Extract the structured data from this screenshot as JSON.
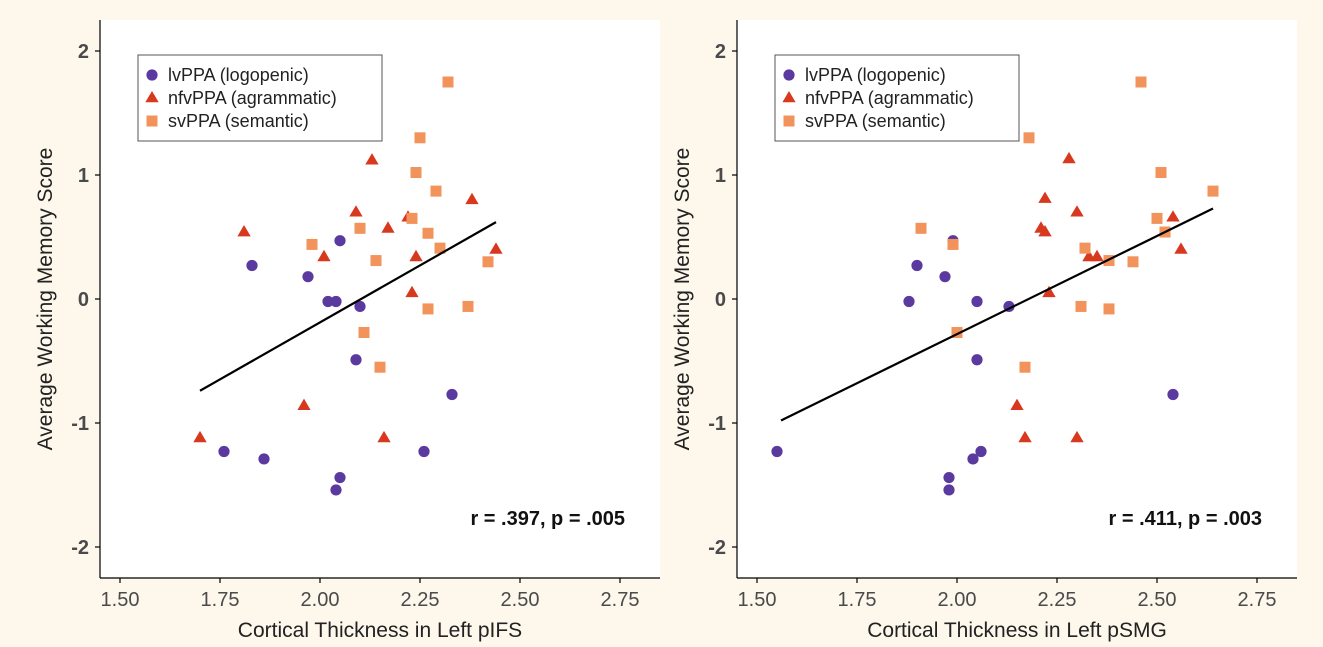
{
  "colors": {
    "background": "#fdf7ec",
    "plot_background": "#ffffff",
    "lvPPA": "#5b3aa0",
    "nfvPPA": "#d8381e",
    "svPPA": "#f2935b",
    "fit_line": "#000000"
  },
  "chart_data": [
    {
      "type": "scatter",
      "xlabel": "Cortical Thickness in Left pIFS",
      "ylabel": "Average Working Memory Score",
      "xlim": [
        1.45,
        2.85
      ],
      "ylim": [
        -2.25,
        2.25
      ],
      "x_ticks": [
        "1.50",
        "1.75",
        "2.00",
        "2.25",
        "2.50",
        "2.75"
      ],
      "y_ticks": [
        "-2",
        "-1",
        "0",
        "1",
        "2"
      ],
      "grid": false,
      "legend_position": "top-left",
      "annotation": "r = .397, p = .005",
      "fit_line": {
        "x": [
          1.7,
          2.44
        ],
        "y": [
          -0.74,
          0.62
        ]
      },
      "series": [
        {
          "name": "lvPPA (logopenic)",
          "marker": "circle",
          "points": [
            [
              1.83,
              0.27
            ],
            [
              1.97,
              0.18
            ],
            [
              2.05,
              0.47
            ],
            [
              2.02,
              -0.02
            ],
            [
              2.04,
              -0.02
            ],
            [
              2.1,
              -0.06
            ],
            [
              2.09,
              -0.49
            ],
            [
              2.33,
              -0.77
            ],
            [
              1.76,
              -1.23
            ],
            [
              1.86,
              -1.29
            ],
            [
              2.26,
              -1.23
            ],
            [
              2.05,
              -1.44
            ],
            [
              2.04,
              -1.54
            ]
          ]
        },
        {
          "name": "nfvPPA (agrammatic)",
          "marker": "triangle",
          "points": [
            [
              1.7,
              -1.12
            ],
            [
              1.81,
              0.54
            ],
            [
              1.96,
              -0.86
            ],
            [
              2.01,
              0.34
            ],
            [
              2.09,
              0.7
            ],
            [
              2.13,
              1.12
            ],
            [
              2.17,
              0.57
            ],
            [
              2.16,
              -1.12
            ],
            [
              2.22,
              0.66
            ],
            [
              2.24,
              0.34
            ],
            [
              2.23,
              0.05
            ],
            [
              2.38,
              0.8
            ],
            [
              2.44,
              0.4
            ]
          ]
        },
        {
          "name": "svPPA (semantic)",
          "marker": "square",
          "points": [
            [
              2.32,
              1.75
            ],
            [
              2.25,
              1.3
            ],
            [
              2.24,
              1.02
            ],
            [
              2.29,
              0.87
            ],
            [
              2.23,
              0.65
            ],
            [
              2.1,
              0.57
            ],
            [
              1.98,
              0.44
            ],
            [
              2.27,
              0.53
            ],
            [
              2.3,
              0.41
            ],
            [
              2.14,
              0.31
            ],
            [
              2.42,
              0.3
            ],
            [
              2.11,
              -0.27
            ],
            [
              2.15,
              -0.55
            ],
            [
              2.27,
              -0.08
            ],
            [
              2.37,
              -0.06
            ]
          ]
        }
      ]
    },
    {
      "type": "scatter",
      "xlabel": "Cortical Thickness in Left pSMG",
      "ylabel": "Average Working Memory Score",
      "xlim": [
        1.45,
        2.85
      ],
      "ylim": [
        -2.25,
        2.25
      ],
      "x_ticks": [
        "1.50",
        "1.75",
        "2.00",
        "2.25",
        "2.50",
        "2.75"
      ],
      "y_ticks": [
        "-2",
        "-1",
        "0",
        "1",
        "2"
      ],
      "grid": false,
      "legend_position": "top-left",
      "annotation": "r = .411, p = .003",
      "fit_line": {
        "x": [
          1.56,
          2.64
        ],
        "y": [
          -0.98,
          0.73
        ]
      },
      "series": [
        {
          "name": "lvPPA (logopenic)",
          "marker": "circle",
          "points": [
            [
              1.55,
              -1.23
            ],
            [
              1.88,
              -0.02
            ],
            [
              1.9,
              0.27
            ],
            [
              1.97,
              0.18
            ],
            [
              1.99,
              0.47
            ],
            [
              2.05,
              -0.02
            ],
            [
              2.05,
              -0.49
            ],
            [
              2.13,
              -0.06
            ],
            [
              2.54,
              -0.77
            ],
            [
              2.04,
              -1.29
            ],
            [
              2.06,
              -1.23
            ],
            [
              1.98,
              -1.44
            ],
            [
              1.98,
              -1.54
            ]
          ]
        },
        {
          "name": "nfvPPA (agrammatic)",
          "marker": "triangle",
          "points": [
            [
              2.28,
              1.13
            ],
            [
              2.22,
              0.81
            ],
            [
              2.3,
              0.7
            ],
            [
              2.21,
              0.57
            ],
            [
              2.22,
              0.54
            ],
            [
              2.54,
              0.66
            ],
            [
              2.33,
              0.34
            ],
            [
              2.56,
              0.4
            ],
            [
              2.23,
              0.05
            ],
            [
              2.15,
              -0.86
            ],
            [
              2.17,
              -1.12
            ],
            [
              2.3,
              -1.12
            ],
            [
              2.35,
              0.34
            ]
          ]
        },
        {
          "name": "svPPA (semantic)",
          "marker": "square",
          "points": [
            [
              2.46,
              1.75
            ],
            [
              2.18,
              1.3
            ],
            [
              2.51,
              1.02
            ],
            [
              2.64,
              0.87
            ],
            [
              2.5,
              0.65
            ],
            [
              1.91,
              0.57
            ],
            [
              1.99,
              0.44
            ],
            [
              2.52,
              0.54
            ],
            [
              2.32,
              0.41
            ],
            [
              2.38,
              0.31
            ],
            [
              2.44,
              0.3
            ],
            [
              2.0,
              -0.27
            ],
            [
              2.17,
              -0.55
            ],
            [
              2.31,
              -0.06
            ],
            [
              2.38,
              -0.08
            ]
          ]
        }
      ]
    }
  ]
}
